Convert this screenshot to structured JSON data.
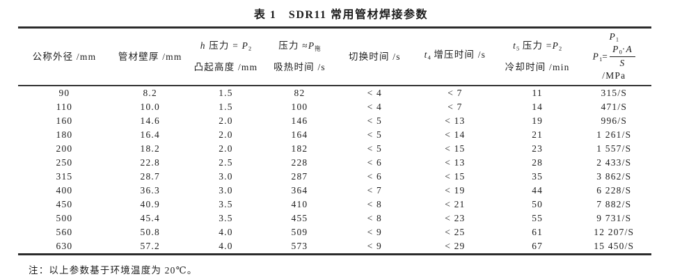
{
  "page": {
    "title": "表 1　SDR11 常用管材焊接参数",
    "note": "注：以上参数基于环境温度为 20℃。"
  },
  "table": {
    "columns": [
      {
        "id": "nominal-outer-diameter",
        "lines": [
          [
            "公称外径 /mm"
          ]
        ]
      },
      {
        "id": "pipe-wall-thickness",
        "lines": [
          [
            "管材壁厚 /mm"
          ]
        ]
      },
      {
        "id": "bead-height",
        "lines": [
          [
            {
              "t": "h",
              "i": 1
            },
            " 压力 = ",
            {
              "t": "P",
              "i": 1
            },
            {
              "t": "2",
              "s": 1
            }
          ],
          [
            "凸起高度 /mm"
          ]
        ]
      },
      {
        "id": "heat-soak-time",
        "lines": [
          [
            "压力 ≈",
            {
              "t": "P",
              "i": 1
            },
            {
              "t": "拖",
              "s": 1
            }
          ],
          [
            "吸热时间 /s"
          ]
        ]
      },
      {
        "id": "switch-time",
        "lines": [
          [
            "切换时间 /s"
          ]
        ]
      },
      {
        "id": "pressure-build-time",
        "lines": [
          [
            {
              "t": "t",
              "i": 1
            },
            {
              "t": "4",
              "s": 1
            },
            " 增压时间 /s"
          ]
        ]
      },
      {
        "id": "cooling-time",
        "lines": [
          [
            {
              "t": "t",
              "i": 1
            },
            {
              "t": "5",
              "s": 1
            },
            " 压力 =",
            {
              "t": "P",
              "i": 1
            },
            {
              "t": "2",
              "s": 1
            }
          ],
          [
            "冷却时间 /min"
          ]
        ]
      },
      {
        "id": "p1-pressure",
        "lines": [
          [
            {
              "t": "P",
              "i": 1
            },
            {
              "t": "1",
              "s": 1
            }
          ],
          [
            {
              "t": "P",
              "i": 1
            },
            {
              "t": "1",
              "s": 1
            },
            "=",
            {
              "frac": {
                "num": [
                  {
                    "t": "P",
                    "i": 1
                  },
                  {
                    "t": "0",
                    "s": 1
                  },
                  "·",
                  {
                    "t": "A",
                    "i": 1
                  }
                ],
                "den": [
                  {
                    "t": "S",
                    "i": 1
                  }
                ]
              }
            }
          ],
          [
            "/MPa"
          ]
        ]
      }
    ],
    "rows": [
      [
        "90",
        "8.2",
        "1.5",
        "82",
        "< 4",
        "< 7",
        "11",
        "315/S"
      ],
      [
        "110",
        "10.0",
        "1.5",
        "100",
        "< 4",
        "< 7",
        "14",
        "471/S"
      ],
      [
        "160",
        "14.6",
        "2.0",
        "146",
        "< 5",
        "< 13",
        "19",
        "996/S"
      ],
      [
        "180",
        "16.4",
        "2.0",
        "164",
        "< 5",
        "< 14",
        "21",
        "1 261/S"
      ],
      [
        "200",
        "18.2",
        "2.0",
        "182",
        "< 5",
        "< 15",
        "23",
        "1 557/S"
      ],
      [
        "250",
        "22.8",
        "2.5",
        "228",
        "< 6",
        "< 13",
        "28",
        "2 433/S"
      ],
      [
        "315",
        "28.7",
        "3.0",
        "287",
        "< 6",
        "< 15",
        "35",
        "3 862/S"
      ],
      [
        "400",
        "36.3",
        "3.0",
        "364",
        "< 7",
        "< 19",
        "44",
        "6 228/S"
      ],
      [
        "450",
        "40.9",
        "3.5",
        "410",
        "< 8",
        "< 21",
        "50",
        "7 882/S"
      ],
      [
        "500",
        "45.4",
        "3.5",
        "455",
        "< 8",
        "< 23",
        "55",
        "9 731/S"
      ],
      [
        "560",
        "50.8",
        "4.0",
        "509",
        "< 9",
        "< 25",
        "61",
        "12 207/S"
      ],
      [
        "630",
        "57.2",
        "4.0",
        "573",
        "< 9",
        "< 29",
        "67",
        "15 450/S"
      ]
    ]
  }
}
